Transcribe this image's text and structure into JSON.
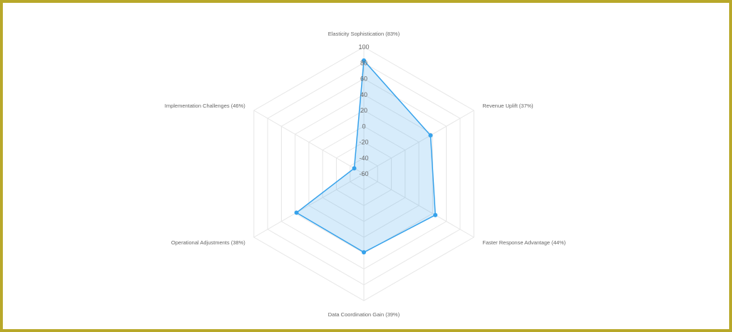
{
  "chart_data": {
    "type": "radar",
    "title": "",
    "categories": [
      "Elasticity Sophistication (83%)",
      "Revenue Uplift (37%)",
      "Faster Response Advantage (44%)",
      "Data Coordination Gain (39%)",
      "Operational Adjustments (38%)",
      "Implementation Challenges (46%)"
    ],
    "series": [
      {
        "name": "",
        "values": [
          83,
          37,
          44,
          39,
          38,
          -46
        ]
      }
    ],
    "r_range": [
      -60,
      100
    ],
    "ticks": [
      -60,
      -40,
      -20,
      0,
      20,
      40,
      60,
      80,
      100
    ],
    "grid": true,
    "legend": "none",
    "colors": {
      "line": "#36a2eb",
      "fill": "rgba(54,162,235,0.2)",
      "grid": "#e6e6e6",
      "border": "#b8a82a"
    }
  }
}
